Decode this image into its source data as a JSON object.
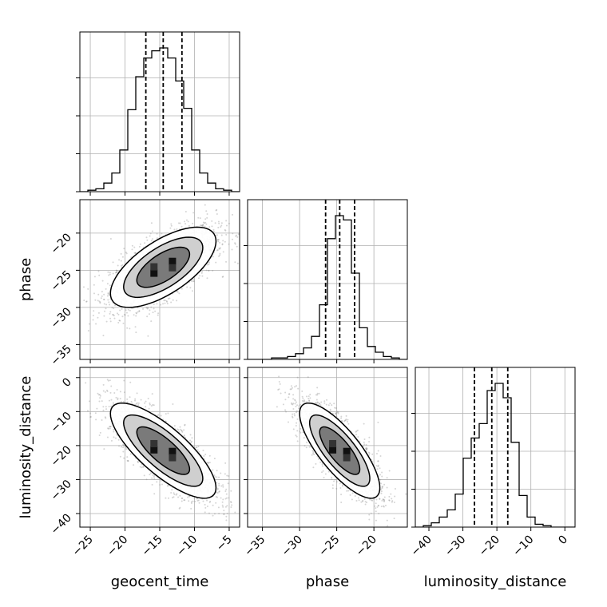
{
  "chart_data": {
    "type": "corner",
    "grid": true,
    "parameters": [
      {
        "name": "geocent_time",
        "axis_label": "geocent_time",
        "range": [
          -26.5,
          -3.5
        ],
        "ticks": [
          -25,
          -20,
          -15,
          -10,
          -5
        ],
        "quantiles": [
          -17.0,
          -14.5,
          -11.8
        ],
        "hist_edges": [
          -26.5,
          -25.35,
          -24.2,
          -23.05,
          -21.9,
          -20.75,
          -19.6,
          -18.45,
          -17.3,
          -16.15,
          -15.0,
          -13.85,
          -12.7,
          -11.55,
          -10.4,
          -9.25,
          -8.1,
          -6.95,
          -5.8,
          -4.65,
          -3.5
        ],
        "hist_counts": [
          0.0,
          0.01,
          0.02,
          0.06,
          0.13,
          0.29,
          0.57,
          0.8,
          0.93,
          0.98,
          1.0,
          0.93,
          0.77,
          0.58,
          0.29,
          0.13,
          0.06,
          0.02,
          0.01,
          0.0
        ]
      },
      {
        "name": "phase",
        "axis_label": "phase",
        "range": [
          -37,
          -15.5
        ],
        "ticks": [
          -35,
          -30,
          -25,
          -20
        ],
        "quantiles": [
          -26.5,
          -24.6,
          -22.6
        ],
        "hist_edges": [
          -37.0,
          -35.925,
          -34.85,
          -33.775,
          -32.7,
          -31.625,
          -30.55,
          -29.475,
          -28.4,
          -27.325,
          -26.25,
          -25.175,
          -24.1,
          -23.025,
          -21.95,
          -20.875,
          -19.8,
          -18.725,
          -17.65,
          -16.575,
          -15.5
        ],
        "hist_counts": [
          0.0,
          0.0,
          0.0,
          0.01,
          0.01,
          0.02,
          0.04,
          0.08,
          0.16,
          0.38,
          0.84,
          1.0,
          0.97,
          0.6,
          0.22,
          0.09,
          0.05,
          0.02,
          0.01,
          0.0
        ]
      },
      {
        "name": "luminosity_distance",
        "axis_label": "luminosity_distance",
        "range": [
          -44,
          3
        ],
        "ticks": [
          -40,
          -30,
          -20,
          -10,
          0
        ],
        "quantiles": [
          -26.6,
          -21.5,
          -16.8
        ],
        "hist_edges": [
          -44.0,
          -41.65,
          -39.3,
          -36.95,
          -34.6,
          -32.25,
          -29.9,
          -27.55,
          -25.2,
          -22.85,
          -20.5,
          -18.15,
          -15.8,
          -13.45,
          -11.1,
          -8.75,
          -6.4,
          -4.05,
          -1.7,
          0.65,
          3.0
        ],
        "hist_counts": [
          0.0,
          0.01,
          0.03,
          0.07,
          0.12,
          0.23,
          0.48,
          0.62,
          0.72,
          0.95,
          1.0,
          0.9,
          0.59,
          0.22,
          0.07,
          0.02,
          0.01,
          0.0,
          0.0,
          0.0
        ]
      }
    ],
    "pairs": [
      {
        "x": "geocent_time",
        "y": "phase",
        "mean": [
          -14.5,
          -24.6
        ],
        "std": [
          3.8,
          2.7
        ],
        "corr": 0.65
      },
      {
        "x": "geocent_time",
        "y": "luminosity_distance",
        "mean": [
          -14.5,
          -21.5
        ],
        "std": [
          3.8,
          7.0
        ],
        "corr": -0.78
      },
      {
        "x": "phase",
        "y": "luminosity_distance",
        "mean": [
          -24.6,
          -21.5
        ],
        "std": [
          2.7,
          7.0
        ],
        "corr": -0.78
      }
    ],
    "contour_levels": [
      "1-sigma",
      "1.5-sigma",
      "2-sigma"
    ]
  }
}
